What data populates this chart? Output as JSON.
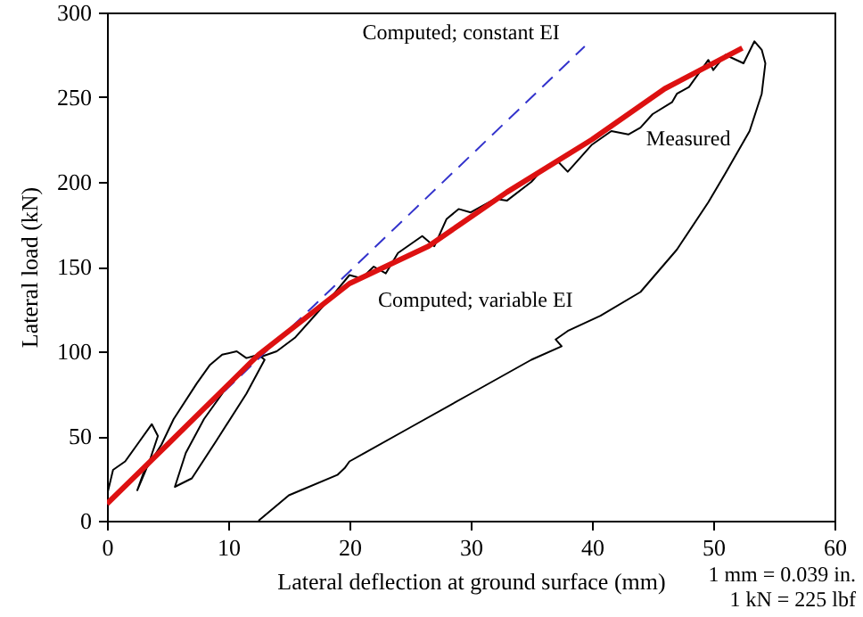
{
  "chart_data": {
    "type": "line",
    "xlabel": "Lateral deflection at ground surface (mm)",
    "ylabel": "Lateral load (kN)",
    "xlim": [
      0,
      60
    ],
    "xticks": [
      0,
      10,
      20,
      30,
      40,
      50,
      60
    ],
    "ylim": [
      0,
      300
    ],
    "yticks": [
      0,
      50,
      100,
      150,
      200,
      250,
      300
    ],
    "grid": false,
    "series": [
      {
        "name": "Measured",
        "color": "#000000",
        "line_style": "solid",
        "x": [
          0,
          0.5,
          1.5,
          2.5,
          3.7,
          4.2,
          3.5,
          2.5,
          3,
          4.5,
          5.5,
          7.4,
          8.5,
          9.5,
          10.7,
          11.5,
          12.5,
          13,
          11.5,
          9,
          7,
          5.6,
          6.5,
          8,
          10,
          12,
          14,
          15.5,
          17,
          18.5,
          20,
          21,
          22,
          23,
          24,
          25,
          26,
          27,
          28,
          29,
          30,
          32,
          33,
          35,
          36,
          37.2,
          38,
          40,
          41.6,
          43,
          44,
          45,
          46.6,
          47,
          48,
          49.6,
          50,
          51,
          52.5,
          53.4,
          54,
          54.3,
          54,
          53,
          51,
          49.6,
          47,
          44,
          40.7,
          38,
          37,
          37.5,
          35,
          30,
          25,
          20,
          19.6,
          19,
          15,
          12.5
        ],
        "values": [
          15,
          30,
          35,
          45,
          57,
          50,
          35,
          18,
          28,
          45,
          60,
          81,
          92,
          98,
          100,
          96,
          98,
          95,
          75,
          47,
          25,
          20,
          40,
          60,
          80,
          95,
          100,
          108,
          120,
          132,
          145,
          143,
          150,
          146,
          158,
          163,
          168,
          162,
          178,
          184,
          182,
          190,
          189,
          200,
          208,
          212,
          206,
          222,
          230,
          228,
          232,
          240,
          247,
          252,
          256,
          272,
          266,
          275,
          270,
          283,
          278,
          270,
          252,
          230,
          205,
          188,
          160,
          135,
          121,
          112,
          107,
          103,
          95,
          75,
          55,
          35,
          31,
          27,
          15,
          0
        ]
      },
      {
        "name": "Computed; constant EI",
        "color": "#3333cc",
        "line_style": "dashed",
        "x": [
          0,
          39.4
        ],
        "values": [
          10,
          280
        ]
      },
      {
        "name": "Computed; variable EI",
        "color": "#dd1111",
        "line_style": "solid",
        "x": [
          0,
          5,
          12.5,
          20,
          26.5,
          33,
          40,
          46,
          52.4
        ],
        "values": [
          10,
          45,
          98,
          140,
          162,
          194,
          225,
          255,
          279
        ]
      }
    ],
    "annotations": [
      "1 mm = 0.039 in.",
      "1 kN = 225 lbf"
    ]
  }
}
